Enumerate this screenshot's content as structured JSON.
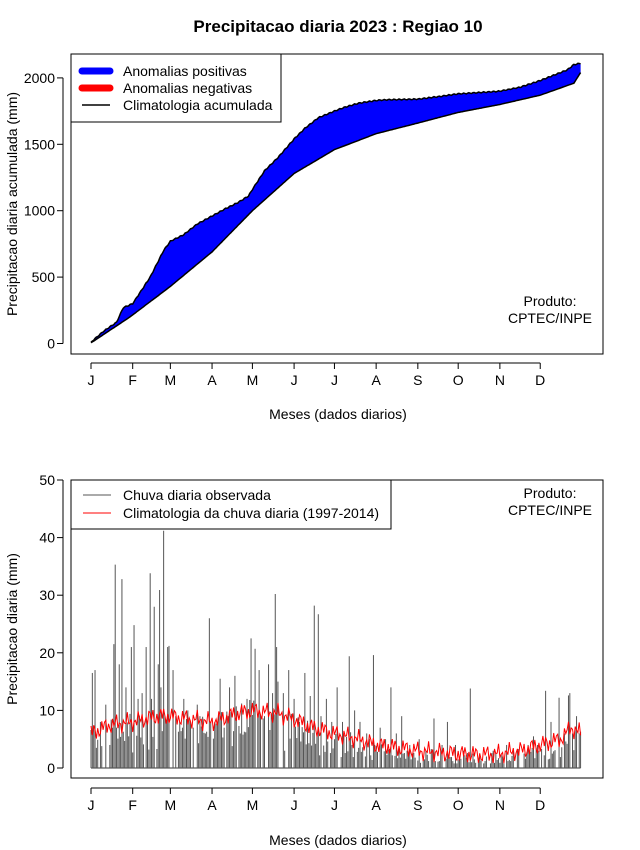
{
  "title": "Precipitacao diaria 2023 : Regiao 10",
  "chart_data": [
    {
      "type": "area",
      "name": "accumulated",
      "xlabel": "Meses (dados diarios)",
      "ylabel": "Precipitacao diaria acumulada (mm)",
      "ylim": [
        0,
        2100
      ],
      "yticks": [
        0,
        500,
        1000,
        1500,
        2000
      ],
      "months": [
        "J",
        "F",
        "M",
        "A",
        "M",
        "J",
        "J",
        "A",
        "S",
        "O",
        "N",
        "D"
      ],
      "month_start_days": [
        1,
        32,
        60,
        91,
        121,
        152,
        182,
        213,
        244,
        274,
        305,
        335
      ],
      "legend": [
        "Anomalias positivas",
        "Anomalias negativas",
        "Climatologia acumulada"
      ],
      "credit": [
        "Produto:",
        "CPTEC/INPE"
      ],
      "colors": {
        "positive": "#0000ff",
        "negative": "#ff0000",
        "climatology": "#000000"
      },
      "climatology_keypoints": [
        [
          1,
          5
        ],
        [
          30,
          200
        ],
        [
          60,
          430
        ],
        [
          91,
          690
        ],
        [
          121,
          1000
        ],
        [
          152,
          1280
        ],
        [
          182,
          1460
        ],
        [
          213,
          1580
        ],
        [
          244,
          1660
        ],
        [
          274,
          1740
        ],
        [
          305,
          1800
        ],
        [
          335,
          1870
        ],
        [
          360,
          1960
        ],
        [
          365,
          2040
        ]
      ],
      "observed_keypoints": [
        [
          1,
          10
        ],
        [
          10,
          90
        ],
        [
          20,
          160
        ],
        [
          25,
          270
        ],
        [
          32,
          300
        ],
        [
          45,
          500
        ],
        [
          55,
          700
        ],
        [
          60,
          770
        ],
        [
          70,
          820
        ],
        [
          80,
          900
        ],
        [
          91,
          960
        ],
        [
          100,
          1010
        ],
        [
          110,
          1060
        ],
        [
          118,
          1110
        ],
        [
          121,
          1160
        ],
        [
          130,
          1300
        ],
        [
          140,
          1400
        ],
        [
          152,
          1540
        ],
        [
          160,
          1620
        ],
        [
          170,
          1700
        ],
        [
          182,
          1750
        ],
        [
          190,
          1780
        ],
        [
          200,
          1810
        ],
        [
          213,
          1830
        ],
        [
          220,
          1835
        ],
        [
          244,
          1840
        ],
        [
          260,
          1860
        ],
        [
          274,
          1880
        ],
        [
          290,
          1890
        ],
        [
          305,
          1900
        ],
        [
          320,
          1930
        ],
        [
          335,
          1980
        ],
        [
          345,
          2020
        ],
        [
          355,
          2060
        ],
        [
          360,
          2100
        ],
        [
          365,
          2110
        ]
      ]
    },
    {
      "type": "bar",
      "name": "daily",
      "xlabel": "Meses (dados diarios)",
      "ylabel": "Precipitacao diaria (mm)",
      "ylim": [
        0,
        50
      ],
      "yticks": [
        0,
        10,
        20,
        30,
        40,
        50
      ],
      "months": [
        "J",
        "F",
        "M",
        "A",
        "M",
        "J",
        "J",
        "A",
        "S",
        "O",
        "N",
        "D"
      ],
      "month_start_days": [
        1,
        32,
        60,
        91,
        121,
        152,
        182,
        213,
        244,
        274,
        305,
        335
      ],
      "legend": [
        "Chuva diaria observada",
        "Climatologia da chuva diaria (1997-2014)"
      ],
      "credit": [
        "Produto:",
        "CPTEC/INPE"
      ],
      "colors": {
        "observed": "#555555",
        "climatology": "#ff0000"
      },
      "observed_peaks": [
        [
          2,
          16.5
        ],
        [
          3,
          7
        ],
        [
          4,
          17
        ],
        [
          8,
          8
        ],
        [
          12,
          11
        ],
        [
          17,
          7
        ],
        [
          18,
          21.5
        ],
        [
          19,
          35.3
        ],
        [
          22,
          18
        ],
        [
          24,
          32.8
        ],
        [
          27,
          14
        ],
        [
          31,
          21
        ],
        [
          33,
          24.8
        ],
        [
          36,
          12
        ],
        [
          39,
          13
        ],
        [
          42,
          21
        ],
        [
          45,
          33.8
        ],
        [
          46,
          12
        ],
        [
          48,
          28
        ],
        [
          51,
          18
        ],
        [
          52,
          30.9
        ],
        [
          53,
          14
        ],
        [
          55,
          41.2
        ],
        [
          56,
          9
        ],
        [
          58,
          21
        ],
        [
          59,
          21.2
        ],
        [
          62,
          17
        ],
        [
          64,
          9
        ],
        [
          70,
          12
        ],
        [
          75,
          8
        ],
        [
          80,
          11
        ],
        [
          86,
          6
        ],
        [
          89,
          26
        ],
        [
          93,
          8
        ],
        [
          97,
          15.5
        ],
        [
          100,
          7
        ],
        [
          104,
          14
        ],
        [
          108,
          16
        ],
        [
          112,
          6
        ],
        [
          117,
          12
        ],
        [
          120,
          22.5
        ],
        [
          123,
          20.7
        ],
        [
          126,
          17
        ],
        [
          130,
          9
        ],
        [
          133,
          18
        ],
        [
          136,
          13
        ],
        [
          138,
          30.2
        ],
        [
          139,
          21
        ],
        [
          140,
          15
        ],
        [
          144,
          13
        ],
        [
          148,
          17
        ],
        [
          152,
          12
        ],
        [
          156,
          8
        ],
        [
          160,
          16.5
        ],
        [
          164,
          12.5
        ],
        [
          167,
          28.2
        ],
        [
          170,
          26.7
        ],
        [
          172,
          9
        ],
        [
          176,
          12
        ],
        [
          180,
          8
        ],
        [
          184,
          14
        ],
        [
          188,
          8
        ],
        [
          193,
          19.4
        ],
        [
          197,
          10
        ],
        [
          201,
          8
        ],
        [
          206,
          6
        ],
        [
          211,
          19.6
        ],
        [
          216,
          7
        ],
        [
          220,
          5
        ],
        [
          224,
          14
        ],
        [
          228,
          6
        ],
        [
          232,
          9
        ],
        [
          238,
          4
        ],
        [
          245,
          5
        ],
        [
          250,
          3
        ],
        [
          256,
          8.6
        ],
        [
          262,
          4
        ],
        [
          266,
          8
        ],
        [
          272,
          4
        ],
        [
          278,
          3
        ],
        [
          283,
          13.8
        ],
        [
          290,
          2
        ],
        [
          300,
          3
        ],
        [
          310,
          4
        ],
        [
          318,
          3
        ],
        [
          326,
          4
        ],
        [
          330,
          5.5
        ],
        [
          334,
          3
        ],
        [
          339,
          13.4
        ],
        [
          343,
          8
        ],
        [
          349,
          12.2
        ],
        [
          353,
          6
        ],
        [
          356,
          12.6
        ],
        [
          357,
          13
        ],
        [
          359,
          6
        ],
        [
          362,
          9
        ],
        [
          364,
          6
        ]
      ],
      "climatology_keypoints": [
        [
          1,
          6
        ],
        [
          15,
          7.5
        ],
        [
          32,
          8
        ],
        [
          50,
          9
        ],
        [
          60,
          9
        ],
        [
          75,
          8.5
        ],
        [
          91,
          8
        ],
        [
          110,
          9.5
        ],
        [
          121,
          10
        ],
        [
          140,
          9.5
        ],
        [
          152,
          8.5
        ],
        [
          166,
          7
        ],
        [
          182,
          6
        ],
        [
          200,
          5
        ],
        [
          213,
          4
        ],
        [
          230,
          3.5
        ],
        [
          244,
          3
        ],
        [
          260,
          2.7
        ],
        [
          274,
          2.5
        ],
        [
          290,
          2.3
        ],
        [
          305,
          2.5
        ],
        [
          320,
          3
        ],
        [
          335,
          4
        ],
        [
          350,
          5
        ],
        [
          358,
          7
        ],
        [
          365,
          6
        ]
      ]
    }
  ]
}
